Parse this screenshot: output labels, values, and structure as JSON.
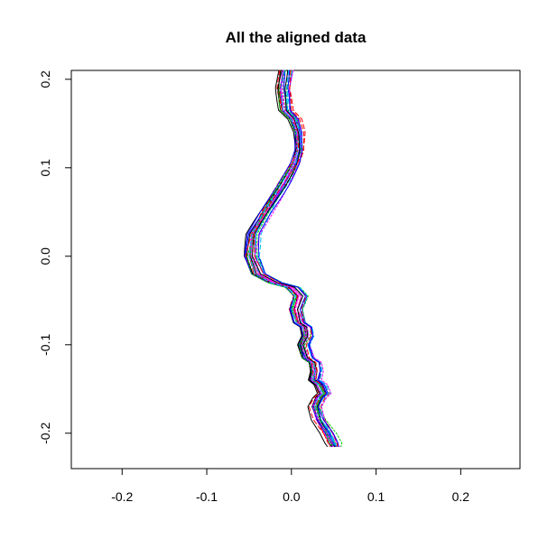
{
  "chart_data": {
    "type": "line",
    "title": "All the aligned data",
    "xlabel": "",
    "ylabel": "",
    "xlim": [
      -0.26,
      0.27
    ],
    "ylim": [
      -0.24,
      0.21
    ],
    "x_ticks": [
      -0.2,
      -0.1,
      0.0,
      0.1,
      0.2
    ],
    "x_tick_labels": [
      "-0.2",
      "-0.1",
      "0.0",
      "0.1",
      "0.2"
    ],
    "y_ticks": [
      -0.2,
      -0.1,
      0.0,
      0.1,
      0.2
    ],
    "y_tick_labels": [
      "-0.2",
      "-0.1",
      "0.0",
      "0.1",
      "0.2"
    ],
    "grid": false,
    "legend": "none",
    "colors": [
      "#000000",
      "#ff0000",
      "#00cd00",
      "#0000ff",
      "#00bfff",
      "#ff00ff"
    ],
    "mean_curve": {
      "x": [
        -0.005,
        -0.008,
        -0.005,
        0.005,
        0.01,
        0.01,
        0.005,
        -0.01,
        -0.03,
        -0.045,
        -0.048,
        -0.04,
        -0.02,
        0.0,
        0.01,
        0.005,
        0.01,
        0.018,
        0.02,
        0.015,
        0.02,
        0.028,
        0.03,
        0.028,
        0.035,
        0.04,
        0.035,
        0.03,
        0.035,
        0.045,
        0.052
      ],
      "y": [
        0.21,
        0.19,
        0.165,
        0.155,
        0.14,
        0.12,
        0.105,
        0.08,
        0.05,
        0.025,
        0.0,
        -0.02,
        -0.03,
        -0.035,
        -0.045,
        -0.06,
        -0.075,
        -0.08,
        -0.09,
        -0.1,
        -0.115,
        -0.12,
        -0.13,
        -0.14,
        -0.145,
        -0.155,
        -0.16,
        -0.17,
        -0.185,
        -0.2,
        -0.215
      ]
    },
    "series_count": 24
  }
}
